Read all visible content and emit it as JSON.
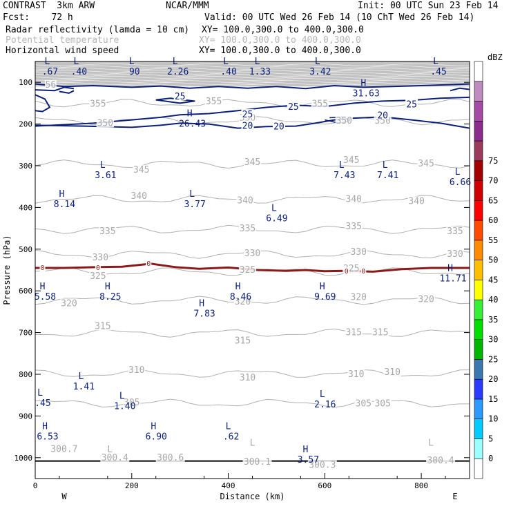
{
  "header": {
    "left1": "CONTRAST  3km ARW",
    "center1": "NCAR/MMM",
    "right1": "Init: 00 UTC Sun 23 Feb 14",
    "left2": "Fcst:    72 h",
    "right2": "Valid: 00 UTC Wed 26 Feb 14 (10 ChT Wed 26 Feb 14)",
    "field1_name": "Radar reflectivity (lamda = 10 cm)",
    "field1_xy": "XY= 100.0,300.0 to 400.0,300.0",
    "field2_name": "Potential temperature",
    "field2_xy": "XY= 100.0,300.0 to 400.0,300.0",
    "field3_name": "Horizontal wind speed",
    "field3_xy": "XY= 100.0,300.0 to 400.0,300.0"
  },
  "chart_data": {
    "type": "contour-cross-section",
    "xlabel": "Distance (km)",
    "ylabel": "Pressure (hPa)",
    "xlim": [
      0,
      900
    ],
    "ylim": [
      1050,
      50
    ],
    "x_ticks": [
      0,
      200,
      400,
      600,
      800
    ],
    "y_ticks": [
      100,
      200,
      300,
      400,
      500,
      600,
      700,
      800,
      900,
      1000
    ],
    "x_ends": [
      "W",
      "E"
    ],
    "colorbar": {
      "unit": "dBZ",
      "levels": [
        "0",
        "5",
        "10",
        "15",
        "20",
        "25",
        "30",
        "35",
        "40",
        "45",
        "50",
        "55",
        "60",
        "65",
        "70",
        "75"
      ],
      "colors": [
        "#ffffff",
        "#9bffff",
        "#00ccff",
        "#2c9bff",
        "#2c39ff",
        "#3a78b0",
        "#00b700",
        "#00e000",
        "#35f035",
        "#ffff00",
        "#ffbe00",
        "#ff8c00",
        "#ff4a00",
        "#ff0000",
        "#d00000",
        "#a50000",
        "#9b3a5a",
        "#8c2c8c",
        "#a54aa5",
        "#c08cc0",
        "#ffffff"
      ]
    },
    "theta_labels": [
      {
        "text": "355",
        "x": 130,
        "p": 152
      },
      {
        "text": "355",
        "x": 370,
        "p": 146
      },
      {
        "text": "355",
        "x": 590,
        "p": 152
      },
      {
        "text": "350",
        "x": 145,
        "p": 198
      },
      {
        "text": "350",
        "x": 440,
        "p": 186
      },
      {
        "text": "350",
        "x": 640,
        "p": 192
      },
      {
        "text": "350",
        "x": 720,
        "p": 192
      },
      {
        "text": "345",
        "x": 220,
        "p": 310
      },
      {
        "text": "345",
        "x": 450,
        "p": 292
      },
      {
        "text": "345",
        "x": 655,
        "p": 287
      },
      {
        "text": "345",
        "x": 810,
        "p": 295
      },
      {
        "text": "340",
        "x": 215,
        "p": 373
      },
      {
        "text": "340",
        "x": 435,
        "p": 384
      },
      {
        "text": "340",
        "x": 660,
        "p": 380
      },
      {
        "text": "340",
        "x": 790,
        "p": 385
      },
      {
        "text": "335",
        "x": 150,
        "p": 457
      },
      {
        "text": "335",
        "x": 440,
        "p": 451
      },
      {
        "text": "335",
        "x": 660,
        "p": 446
      },
      {
        "text": "335",
        "x": 870,
        "p": 457
      },
      {
        "text": "330",
        "x": 135,
        "p": 520
      },
      {
        "text": "330",
        "x": 450,
        "p": 510
      },
      {
        "text": "330",
        "x": 670,
        "p": 507
      },
      {
        "text": "330",
        "x": 870,
        "p": 512
      },
      {
        "text": "325",
        "x": 130,
        "p": 565
      },
      {
        "text": "325",
        "x": 440,
        "p": 550
      },
      {
        "text": "325",
        "x": 655,
        "p": 547
      },
      {
        "text": "320",
        "x": 70,
        "p": 630
      },
      {
        "text": "320",
        "x": 430,
        "p": 626
      },
      {
        "text": "320",
        "x": 670,
        "p": 615
      },
      {
        "text": "320",
        "x": 810,
        "p": 620
      },
      {
        "text": "315",
        "x": 140,
        "p": 685
      },
      {
        "text": "315",
        "x": 430,
        "p": 720
      },
      {
        "text": "315",
        "x": 660,
        "p": 700
      },
      {
        "text": "315",
        "x": 715,
        "p": 700
      },
      {
        "text": "310",
        "x": 210,
        "p": 790
      },
      {
        "text": "310",
        "x": 440,
        "p": 808
      },
      {
        "text": "310",
        "x": 665,
        "p": 800
      },
      {
        "text": "310",
        "x": 740,
        "p": 795
      },
      {
        "text": "305",
        "x": 200,
        "p": 868
      },
      {
        "text": "305",
        "x": 680,
        "p": 870
      },
      {
        "text": "305",
        "x": 720,
        "p": 870
      },
      {
        "text": "300.7",
        "x": 60,
        "p": 980
      },
      {
        "text": "300.4",
        "x": 165,
        "p": 1000
      },
      {
        "text": "300.6",
        "x": 280,
        "p": 1000
      },
      {
        "text": "300.1",
        "x": 460,
        "p": 1010
      },
      {
        "text": "300.3",
        "x": 595,
        "p": 1018
      },
      {
        "text": "300.4",
        "x": 840,
        "p": 1007
      },
      {
        "text": "56",
        "x": 32,
        "p": 106
      }
    ],
    "theta_extrema": [
      {
        "text": "L",
        "x": 155,
        "p": 1000
      },
      {
        "text": "L",
        "x": 450,
        "p": 985
      },
      {
        "text": "L",
        "x": 820,
        "p": 985
      }
    ],
    "speed_extrema": [
      {
        "hl": "L",
        "value": ".67",
        "x": 25,
        "p": 60
      },
      {
        "hl": "L",
        "value": ".40",
        "x": 85,
        "p": 60
      },
      {
        "hl": "L",
        "value": "90",
        "x": 200,
        "p": 60
      },
      {
        "hl": "L",
        "value": "2.26",
        "x": 290,
        "p": 60
      },
      {
        "hl": "L",
        "value": ".40",
        "x": 395,
        "p": 60
      },
      {
        "hl": "L",
        "value": "1.33",
        "x": 460,
        "p": 60
      },
      {
        "hl": "L",
        "value": "3.42",
        "x": 585,
        "p": 60
      },
      {
        "hl": "L",
        "value": ".45",
        "x": 830,
        "p": 60
      },
      {
        "hl": "H",
        "value": "31.63",
        "x": 680,
        "p": 112
      },
      {
        "hl": "H",
        "value": "26.43",
        "x": 320,
        "p": 185
      },
      {
        "hl": "L",
        "value": "3.61",
        "x": 140,
        "p": 308
      },
      {
        "hl": "L",
        "value": "7.43",
        "x": 635,
        "p": 308
      },
      {
        "hl": "L",
        "value": "7.41",
        "x": 725,
        "p": 308
      },
      {
        "hl": "L",
        "value": "6.66",
        "x": 875,
        "p": 325
      },
      {
        "hl": "H",
        "value": "8.14",
        "x": 55,
        "p": 378
      },
      {
        "hl": "L",
        "value": "3.77",
        "x": 325,
        "p": 378
      },
      {
        "hl": "L",
        "value": "6.49",
        "x": 495,
        "p": 412
      },
      {
        "hl": "H",
        "value": "11.71",
        "x": 860,
        "p": 556
      },
      {
        "hl": "H",
        "value": "5.58",
        "x": 15,
        "p": 600
      },
      {
        "hl": "H",
        "value": "8.25",
        "x": 150,
        "p": 600
      },
      {
        "hl": "H",
        "value": "8.46",
        "x": 420,
        "p": 600
      },
      {
        "hl": "H",
        "value": "9.69",
        "x": 595,
        "p": 600
      },
      {
        "hl": "H",
        "value": "7.83",
        "x": 345,
        "p": 640
      },
      {
        "hl": "L",
        "value": "1.41",
        "x": 95,
        "p": 815
      },
      {
        "hl": "L",
        "value": "1.40",
        "x": 180,
        "p": 862
      },
      {
        "hl": "L",
        "value": ".45",
        "x": 10,
        "p": 855
      },
      {
        "hl": "L",
        "value": "2.16",
        "x": 595,
        "p": 858
      },
      {
        "hl": "H",
        "value": "6.53",
        "x": 20,
        "p": 935
      },
      {
        "hl": "H",
        "value": "6.90",
        "x": 245,
        "p": 935
      },
      {
        "hl": "L",
        "value": ".62",
        "x": 400,
        "p": 935
      },
      {
        "hl": "H",
        "value": "3.57",
        "x": 560,
        "p": 990
      }
    ],
    "speed_contour_labels": [
      {
        "text": "25",
        "x": 300,
        "p": 133
      },
      {
        "text": "25",
        "x": 535,
        "p": 158
      },
      {
        "text": "25",
        "x": 780,
        "p": 152
      },
      {
        "text": "25",
        "x": 440,
        "p": 176
      },
      {
        "text": "20",
        "x": 720,
        "p": 178
      },
      {
        "text": "20",
        "x": 440,
        "p": 203
      },
      {
        "text": "20",
        "x": 505,
        "p": 205
      }
    ],
    "reflectivity_labels": [
      {
        "text": "0",
        "x": 15,
        "p": 545
      },
      {
        "text": "0",
        "x": 130,
        "p": 545
      },
      {
        "text": "0",
        "x": 235,
        "p": 535
      },
      {
        "text": "0",
        "x": 645,
        "p": 553
      },
      {
        "text": "0",
        "x": 680,
        "p": 553
      }
    ]
  }
}
